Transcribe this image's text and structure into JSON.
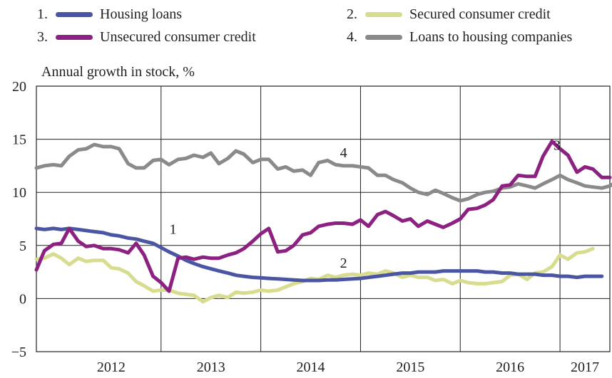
{
  "chart_data": {
    "type": "line",
    "ylabel": "Annual growth in stock, %",
    "ylim": [
      -5,
      20
    ],
    "yticks": [
      "20",
      "15",
      "10",
      "5",
      "0",
      "−5"
    ],
    "ytick_values": [
      20,
      15,
      10,
      5,
      0,
      -5
    ],
    "x_tick_labels": [
      "2012",
      "2013",
      "2014",
      "2015",
      "2016",
      "2017"
    ],
    "x_range": [
      2011.75,
      2017.5
    ],
    "grid": true,
    "legend_position": "top",
    "series": [
      {
        "number": "1.",
        "name": "Housing loans",
        "color": "#4a56a4",
        "label": "1",
        "label_at": [
          2013.12,
          6.1
        ],
        "points": [
          [
            2011.75,
            6.6
          ],
          [
            2011.83,
            6.5
          ],
          [
            2011.92,
            6.6
          ],
          [
            2012.0,
            6.5
          ],
          [
            2012.08,
            6.6
          ],
          [
            2012.17,
            6.5
          ],
          [
            2012.25,
            6.4
          ],
          [
            2012.33,
            6.3
          ],
          [
            2012.42,
            6.2
          ],
          [
            2012.5,
            6.0
          ],
          [
            2012.58,
            5.9
          ],
          [
            2012.67,
            5.7
          ],
          [
            2012.75,
            5.6
          ],
          [
            2012.83,
            5.4
          ],
          [
            2012.92,
            5.2
          ],
          [
            2013.0,
            4.8
          ],
          [
            2013.08,
            4.4
          ],
          [
            2013.17,
            4.0
          ],
          [
            2013.25,
            3.6
          ],
          [
            2013.33,
            3.3
          ],
          [
            2013.42,
            3.0
          ],
          [
            2013.5,
            2.8
          ],
          [
            2013.58,
            2.6
          ],
          [
            2013.67,
            2.4
          ],
          [
            2013.75,
            2.2
          ],
          [
            2013.83,
            2.1
          ],
          [
            2013.92,
            2.0
          ],
          [
            2014.0,
            1.95
          ],
          [
            2014.08,
            1.9
          ],
          [
            2014.17,
            1.85
          ],
          [
            2014.25,
            1.8
          ],
          [
            2014.33,
            1.75
          ],
          [
            2014.42,
            1.7
          ],
          [
            2014.5,
            1.7
          ],
          [
            2014.58,
            1.7
          ],
          [
            2014.67,
            1.75
          ],
          [
            2014.75,
            1.75
          ],
          [
            2014.83,
            1.8
          ],
          [
            2014.92,
            1.85
          ],
          [
            2015.0,
            1.9
          ],
          [
            2015.08,
            2.0
          ],
          [
            2015.17,
            2.1
          ],
          [
            2015.25,
            2.2
          ],
          [
            2015.33,
            2.3
          ],
          [
            2015.42,
            2.4
          ],
          [
            2015.5,
            2.4
          ],
          [
            2015.58,
            2.5
          ],
          [
            2015.67,
            2.5
          ],
          [
            2015.75,
            2.5
          ],
          [
            2015.83,
            2.6
          ],
          [
            2015.92,
            2.6
          ],
          [
            2016.0,
            2.6
          ],
          [
            2016.08,
            2.6
          ],
          [
            2016.17,
            2.6
          ],
          [
            2016.25,
            2.5
          ],
          [
            2016.33,
            2.5
          ],
          [
            2016.42,
            2.4
          ],
          [
            2016.5,
            2.4
          ],
          [
            2016.58,
            2.3
          ],
          [
            2016.67,
            2.3
          ],
          [
            2016.75,
            2.3
          ],
          [
            2016.83,
            2.2
          ],
          [
            2016.92,
            2.2
          ],
          [
            2017.0,
            2.1
          ],
          [
            2017.08,
            2.1
          ],
          [
            2017.17,
            2.0
          ],
          [
            2017.25,
            2.1
          ],
          [
            2017.33,
            2.1
          ],
          [
            2017.42,
            2.1
          ]
        ]
      },
      {
        "number": "2.",
        "name": "Secured consumer credit",
        "color": "#d8dc8e",
        "label": "2",
        "label_at": [
          2014.83,
          2.9
        ],
        "points": [
          [
            2011.75,
            3.7
          ],
          [
            2011.83,
            3.8
          ],
          [
            2011.92,
            4.2
          ],
          [
            2012.0,
            3.8
          ],
          [
            2012.08,
            3.2
          ],
          [
            2012.17,
            3.8
          ],
          [
            2012.25,
            3.5
          ],
          [
            2012.33,
            3.6
          ],
          [
            2012.42,
            3.6
          ],
          [
            2012.5,
            2.9
          ],
          [
            2012.58,
            2.8
          ],
          [
            2012.67,
            2.4
          ],
          [
            2012.75,
            1.6
          ],
          [
            2012.83,
            1.2
          ],
          [
            2012.92,
            0.7
          ],
          [
            2013.0,
            0.8
          ],
          [
            2013.08,
            0.8
          ],
          [
            2013.17,
            0.5
          ],
          [
            2013.25,
            0.4
          ],
          [
            2013.33,
            0.3
          ],
          [
            2013.42,
            -0.3
          ],
          [
            2013.5,
            0.1
          ],
          [
            2013.58,
            0.3
          ],
          [
            2013.67,
            0.1
          ],
          [
            2013.75,
            0.6
          ],
          [
            2013.83,
            0.5
          ],
          [
            2013.92,
            0.6
          ],
          [
            2014.0,
            0.8
          ],
          [
            2014.08,
            0.7
          ],
          [
            2014.17,
            0.8
          ],
          [
            2014.25,
            1.1
          ],
          [
            2014.33,
            1.4
          ],
          [
            2014.42,
            1.6
          ],
          [
            2014.5,
            1.9
          ],
          [
            2014.58,
            1.8
          ],
          [
            2014.67,
            2.2
          ],
          [
            2014.75,
            2.0
          ],
          [
            2014.83,
            2.2
          ],
          [
            2014.92,
            2.3
          ],
          [
            2015.0,
            2.2
          ],
          [
            2015.08,
            2.4
          ],
          [
            2015.17,
            2.3
          ],
          [
            2015.25,
            2.6
          ],
          [
            2015.33,
            2.4
          ],
          [
            2015.42,
            2.0
          ],
          [
            2015.5,
            2.2
          ],
          [
            2015.58,
            2.0
          ],
          [
            2015.67,
            2.0
          ],
          [
            2015.75,
            1.7
          ],
          [
            2015.83,
            1.8
          ],
          [
            2015.92,
            1.4
          ],
          [
            2016.0,
            1.7
          ],
          [
            2016.08,
            1.5
          ],
          [
            2016.17,
            1.4
          ],
          [
            2016.25,
            1.4
          ],
          [
            2016.33,
            1.5
          ],
          [
            2016.42,
            1.6
          ],
          [
            2016.5,
            2.2
          ],
          [
            2016.58,
            2.3
          ],
          [
            2016.67,
            1.8
          ],
          [
            2016.75,
            2.4
          ],
          [
            2016.83,
            2.5
          ],
          [
            2016.92,
            3.0
          ],
          [
            2017.0,
            4.1
          ],
          [
            2017.08,
            3.7
          ],
          [
            2017.17,
            4.3
          ],
          [
            2017.25,
            4.4
          ],
          [
            2017.33,
            4.7
          ]
        ]
      },
      {
        "number": "3.",
        "name": "Unsecured consumer credit",
        "color": "#8c2182",
        "label": "3",
        "label_at": [
          2016.97,
          14.0
        ],
        "points": [
          [
            2011.75,
            2.7
          ],
          [
            2011.83,
            4.5
          ],
          [
            2011.92,
            5.1
          ],
          [
            2012.0,
            5.2
          ],
          [
            2012.08,
            6.6
          ],
          [
            2012.17,
            5.4
          ],
          [
            2012.25,
            4.9
          ],
          [
            2012.33,
            5.0
          ],
          [
            2012.42,
            4.7
          ],
          [
            2012.5,
            4.7
          ],
          [
            2012.58,
            4.6
          ],
          [
            2012.67,
            4.3
          ],
          [
            2012.75,
            5.2
          ],
          [
            2012.83,
            4.1
          ],
          [
            2012.92,
            2.1
          ],
          [
            2013.0,
            1.5
          ],
          [
            2013.08,
            0.7
          ],
          [
            2013.17,
            3.8
          ],
          [
            2013.25,
            3.9
          ],
          [
            2013.33,
            3.7
          ],
          [
            2013.42,
            3.9
          ],
          [
            2013.5,
            3.8
          ],
          [
            2013.58,
            3.8
          ],
          [
            2013.67,
            4.1
          ],
          [
            2013.75,
            4.3
          ],
          [
            2013.83,
            4.7
          ],
          [
            2013.92,
            5.4
          ],
          [
            2014.0,
            6.1
          ],
          [
            2014.08,
            6.6
          ],
          [
            2014.17,
            4.4
          ],
          [
            2014.25,
            4.5
          ],
          [
            2014.33,
            5.0
          ],
          [
            2014.42,
            6.0
          ],
          [
            2014.5,
            6.2
          ],
          [
            2014.58,
            6.8
          ],
          [
            2014.67,
            7.0
          ],
          [
            2014.75,
            7.1
          ],
          [
            2014.83,
            7.1
          ],
          [
            2014.92,
            7.0
          ],
          [
            2015.0,
            7.4
          ],
          [
            2015.08,
            6.8
          ],
          [
            2015.17,
            7.9
          ],
          [
            2015.25,
            8.2
          ],
          [
            2015.33,
            7.8
          ],
          [
            2015.42,
            7.3
          ],
          [
            2015.5,
            7.5
          ],
          [
            2015.58,
            6.8
          ],
          [
            2015.67,
            7.3
          ],
          [
            2015.75,
            7.0
          ],
          [
            2015.83,
            6.7
          ],
          [
            2015.92,
            7.1
          ],
          [
            2016.0,
            7.5
          ],
          [
            2016.08,
            8.4
          ],
          [
            2016.17,
            8.5
          ],
          [
            2016.25,
            8.8
          ],
          [
            2016.33,
            9.3
          ],
          [
            2016.42,
            10.6
          ],
          [
            2016.5,
            10.7
          ],
          [
            2016.58,
            11.6
          ],
          [
            2016.67,
            11.5
          ],
          [
            2016.75,
            11.5
          ],
          [
            2016.83,
            13.4
          ],
          [
            2016.92,
            14.8
          ],
          [
            2017.0,
            14.1
          ],
          [
            2017.08,
            13.5
          ],
          [
            2017.17,
            11.9
          ],
          [
            2017.25,
            12.4
          ],
          [
            2017.33,
            12.2
          ],
          [
            2017.42,
            11.4
          ],
          [
            2017.5,
            11.4
          ]
        ]
      },
      {
        "number": "4.",
        "name": "Loans to housing companies",
        "color": "#8a8a8a",
        "label": "4",
        "label_at": [
          2014.83,
          13.3
        ],
        "points": [
          [
            2011.75,
            12.3
          ],
          [
            2011.83,
            12.5
          ],
          [
            2011.92,
            12.6
          ],
          [
            2012.0,
            12.5
          ],
          [
            2012.08,
            13.4
          ],
          [
            2012.17,
            14.0
          ],
          [
            2012.25,
            14.1
          ],
          [
            2012.33,
            14.5
          ],
          [
            2012.42,
            14.3
          ],
          [
            2012.5,
            14.3
          ],
          [
            2012.58,
            14.1
          ],
          [
            2012.67,
            12.7
          ],
          [
            2012.75,
            12.3
          ],
          [
            2012.83,
            12.3
          ],
          [
            2012.92,
            13.0
          ],
          [
            2013.0,
            13.1
          ],
          [
            2013.08,
            12.6
          ],
          [
            2013.17,
            13.1
          ],
          [
            2013.25,
            13.2
          ],
          [
            2013.33,
            13.5
          ],
          [
            2013.42,
            13.3
          ],
          [
            2013.5,
            13.7
          ],
          [
            2013.58,
            12.7
          ],
          [
            2013.67,
            13.2
          ],
          [
            2013.75,
            13.9
          ],
          [
            2013.83,
            13.6
          ],
          [
            2013.92,
            12.8
          ],
          [
            2014.0,
            13.1
          ],
          [
            2014.08,
            13.1
          ],
          [
            2014.17,
            12.2
          ],
          [
            2014.25,
            12.4
          ],
          [
            2014.33,
            12.0
          ],
          [
            2014.42,
            12.1
          ],
          [
            2014.5,
            11.6
          ],
          [
            2014.58,
            12.8
          ],
          [
            2014.67,
            13.0
          ],
          [
            2014.75,
            12.6
          ],
          [
            2014.83,
            12.5
          ],
          [
            2014.92,
            12.5
          ],
          [
            2015.0,
            12.4
          ],
          [
            2015.08,
            12.3
          ],
          [
            2015.17,
            11.6
          ],
          [
            2015.25,
            11.6
          ],
          [
            2015.33,
            11.2
          ],
          [
            2015.42,
            10.9
          ],
          [
            2015.5,
            10.4
          ],
          [
            2015.58,
            10.0
          ],
          [
            2015.67,
            9.8
          ],
          [
            2015.75,
            10.2
          ],
          [
            2015.83,
            9.9
          ],
          [
            2015.92,
            9.5
          ],
          [
            2016.0,
            9.2
          ],
          [
            2016.08,
            9.4
          ],
          [
            2016.17,
            9.8
          ],
          [
            2016.25,
            10.0
          ],
          [
            2016.33,
            10.1
          ],
          [
            2016.42,
            10.4
          ],
          [
            2016.5,
            10.5
          ],
          [
            2016.58,
            10.8
          ],
          [
            2016.67,
            10.6
          ],
          [
            2016.75,
            10.4
          ],
          [
            2016.83,
            10.8
          ],
          [
            2016.92,
            11.2
          ],
          [
            2017.0,
            11.6
          ],
          [
            2017.08,
            11.2
          ],
          [
            2017.17,
            10.9
          ],
          [
            2017.25,
            10.6
          ],
          [
            2017.33,
            10.5
          ],
          [
            2017.42,
            10.4
          ],
          [
            2017.5,
            10.6
          ],
          [
            2017.58,
            11.1
          ]
        ]
      }
    ]
  }
}
